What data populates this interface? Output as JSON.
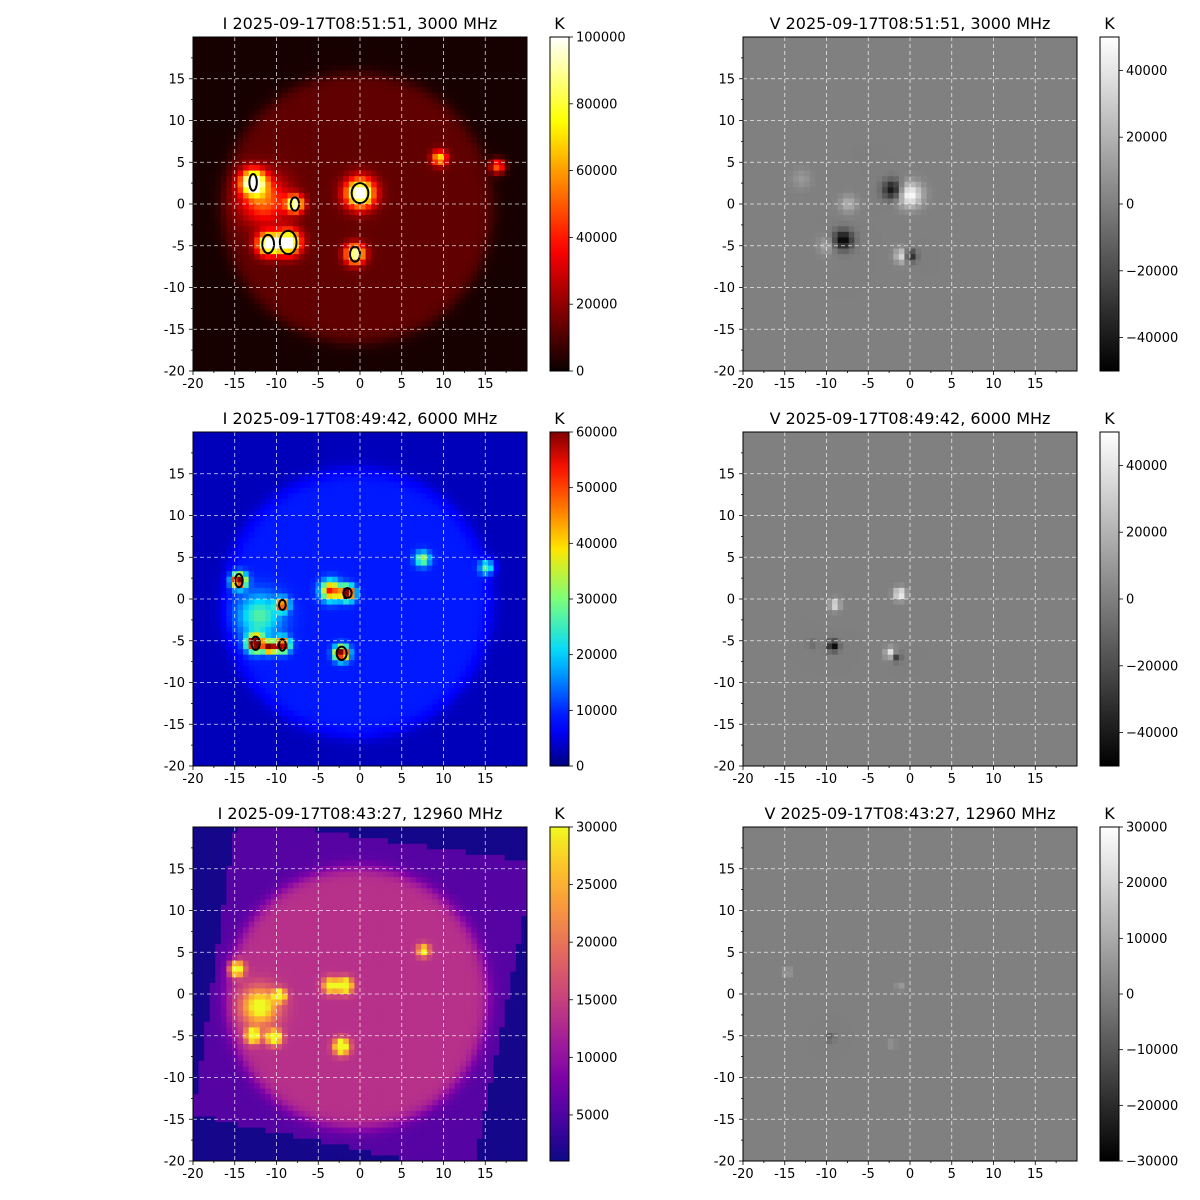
{
  "figure": {
    "background": "#ffffff",
    "grid_color": "#ffffff",
    "contour_color": "#000000"
  },
  "chart_data": [
    {
      "type": "heatmap",
      "stokes": "I",
      "title": "I 2025-09-17T08:51:51, 3000 MHz",
      "colorbar_label": "K",
      "colormap": "hot",
      "colorbar_ticks": [
        "0",
        "20000",
        "40000",
        "60000",
        "80000",
        "100000"
      ],
      "colorbar_tick_values": [
        0,
        20000,
        40000,
        60000,
        80000,
        100000
      ],
      "colorbar_range": [
        0,
        100000
      ],
      "xlim": [
        -20,
        20
      ],
      "ylim": [
        -20,
        20
      ],
      "x_ticks": [
        "-20",
        "-15",
        "-10",
        "-5",
        "0",
        "5",
        "10",
        "15"
      ],
      "x_tick_values": [
        -20,
        -15,
        -10,
        -5,
        0,
        5,
        10,
        15
      ],
      "y_ticks": [
        "-20",
        "-15",
        "-10",
        "-5",
        "0",
        "5",
        "10",
        "15"
      ],
      "y_tick_values": [
        -20,
        -15,
        -10,
        -5,
        0,
        5,
        10,
        15
      ],
      "grid": true,
      "disk": {
        "center": [
          -0.3,
          -0.5
        ],
        "radius": 16.2,
        "level": 13000
      },
      "background_level": 2000,
      "sources": [
        {
          "x": -12.8,
          "y": 2.6,
          "peak": 100000,
          "sigma": 1.0
        },
        {
          "x": -11.0,
          "y": -4.8,
          "peak": 100000,
          "sigma": 0.9
        },
        {
          "x": -8.6,
          "y": -4.6,
          "peak": 100000,
          "sigma": 1.0
        },
        {
          "x": -7.8,
          "y": 0.0,
          "peak": 85000,
          "sigma": 0.7
        },
        {
          "x": 0.0,
          "y": 1.3,
          "peak": 100000,
          "sigma": 1.2
        },
        {
          "x": -0.6,
          "y": -6.0,
          "peak": 90000,
          "sigma": 0.8
        },
        {
          "x": 9.5,
          "y": 5.5,
          "peak": 60000,
          "sigma": 0.6
        },
        {
          "x": 16.5,
          "y": 4.5,
          "peak": 50000,
          "sigma": 0.6
        },
        {
          "x": -11.5,
          "y": 0.5,
          "peak": 40000,
          "sigma": 2.0
        }
      ],
      "contours": [
        {
          "x": -12.8,
          "y": 2.6,
          "rx": 0.45,
          "ry": 1.0
        },
        {
          "x": -11.0,
          "y": -4.8,
          "rx": 0.7,
          "ry": 1.1
        },
        {
          "x": -8.6,
          "y": -4.6,
          "rx": 1.0,
          "ry": 1.4
        },
        {
          "x": -7.8,
          "y": 0.0,
          "rx": 0.5,
          "ry": 0.8
        },
        {
          "x": 0.0,
          "y": 1.3,
          "rx": 1.0,
          "ry": 1.2
        },
        {
          "x": -0.6,
          "y": -6.0,
          "rx": 0.6,
          "ry": 0.9
        }
      ]
    },
    {
      "type": "heatmap",
      "stokes": "V",
      "title": "V 2025-09-17T08:51:51, 3000 MHz",
      "colorbar_label": "K",
      "colormap": "gray",
      "colorbar_ticks": [
        "−40000",
        "−20000",
        "0",
        "20000",
        "40000"
      ],
      "colorbar_tick_values": [
        -40000,
        -20000,
        0,
        20000,
        40000
      ],
      "colorbar_range": [
        -50000,
        50000
      ],
      "xlim": [
        -20,
        20
      ],
      "ylim": [
        -20,
        20
      ],
      "x_ticks": [
        "-20",
        "-15",
        "-10",
        "-5",
        "0",
        "5",
        "10",
        "15"
      ],
      "x_tick_values": [
        -20,
        -15,
        -10,
        -5,
        0,
        5,
        10,
        15
      ],
      "y_ticks": [
        "-20",
        "-15",
        "-10",
        "-5",
        "0",
        "5",
        "10",
        "15"
      ],
      "y_tick_values": [
        -20,
        -15,
        -10,
        -5,
        0,
        5,
        10,
        15
      ],
      "grid": true,
      "sources": [
        {
          "x": -8.0,
          "y": -4.3,
          "peak": -50000,
          "sigma": 0.8
        },
        {
          "x": -7.4,
          "y": 0.0,
          "peak": 20000,
          "sigma": 0.7
        },
        {
          "x": -2.1,
          "y": 1.7,
          "peak": -45000,
          "sigma": 0.8
        },
        {
          "x": 0.0,
          "y": 1.1,
          "peak": 50000,
          "sigma": 1.0
        },
        {
          "x": -0.9,
          "y": -6.2,
          "peak": 40000,
          "sigma": 0.6
        },
        {
          "x": 0.0,
          "y": -6.2,
          "peak": -45000,
          "sigma": 0.5
        },
        {
          "x": -13.0,
          "y": 3.0,
          "peak": 10000,
          "sigma": 0.8
        },
        {
          "x": -10.0,
          "y": -5.0,
          "peak": 15000,
          "sigma": 0.7
        }
      ]
    },
    {
      "type": "heatmap",
      "stokes": "I",
      "title": "I 2025-09-17T08:49:42, 6000 MHz",
      "colorbar_label": "K",
      "colormap": "jet",
      "colorbar_ticks": [
        "0",
        "10000",
        "20000",
        "30000",
        "40000",
        "50000",
        "60000"
      ],
      "colorbar_tick_values": [
        0,
        10000,
        20000,
        30000,
        40000,
        50000,
        60000
      ],
      "colorbar_range": [
        0,
        60000
      ],
      "xlim": [
        -20,
        20
      ],
      "ylim": [
        -20,
        20
      ],
      "x_ticks": [
        "-20",
        "-15",
        "-10",
        "-5",
        "0",
        "5",
        "10",
        "15"
      ],
      "x_tick_values": [
        -20,
        -15,
        -10,
        -5,
        0,
        5,
        10,
        15
      ],
      "y_ticks": [
        "-20",
        "-15",
        "-10",
        "-5",
        "0",
        "5",
        "10",
        "15"
      ],
      "y_tick_values": [
        -20,
        -15,
        -10,
        -5,
        0,
        5,
        10,
        15
      ],
      "grid": true,
      "disk": {
        "center": [
          -0.3,
          -0.5
        ],
        "radius": 16.0,
        "level": 9000
      },
      "background_level": 3000,
      "sources": [
        {
          "x": -14.5,
          "y": 2.2,
          "peak": 60000,
          "sigma": 0.6
        },
        {
          "x": -12.5,
          "y": -5.3,
          "peak": 60000,
          "sigma": 0.7
        },
        {
          "x": -10.8,
          "y": -5.8,
          "peak": 55000,
          "sigma": 0.5
        },
        {
          "x": -9.3,
          "y": -5.5,
          "peak": 55000,
          "sigma": 0.6
        },
        {
          "x": -9.3,
          "y": -0.7,
          "peak": 50000,
          "sigma": 0.5
        },
        {
          "x": -3.5,
          "y": 1.0,
          "peak": 45000,
          "sigma": 0.8
        },
        {
          "x": -1.5,
          "y": 0.7,
          "peak": 60000,
          "sigma": 0.6
        },
        {
          "x": -2.2,
          "y": -6.5,
          "peak": 60000,
          "sigma": 0.6
        },
        {
          "x": 7.5,
          "y": 4.8,
          "peak": 25000,
          "sigma": 0.6
        },
        {
          "x": 15.2,
          "y": 3.8,
          "peak": 22000,
          "sigma": 0.6
        },
        {
          "x": -12.0,
          "y": -2.0,
          "peak": 18000,
          "sigma": 1.8
        }
      ],
      "contours": [
        {
          "x": -14.5,
          "y": 2.2,
          "rx": 0.45,
          "ry": 0.8
        },
        {
          "x": -12.5,
          "y": -5.3,
          "rx": 0.5,
          "ry": 0.8
        },
        {
          "x": -9.3,
          "y": -5.5,
          "rx": 0.4,
          "ry": 0.7
        },
        {
          "x": -9.3,
          "y": -0.7,
          "rx": 0.4,
          "ry": 0.6
        },
        {
          "x": -1.5,
          "y": 0.7,
          "rx": 0.5,
          "ry": 0.6
        },
        {
          "x": -2.2,
          "y": -6.5,
          "rx": 0.6,
          "ry": 0.8
        }
      ]
    },
    {
      "type": "heatmap",
      "stokes": "V",
      "title": "V 2025-09-17T08:49:42, 6000 MHz",
      "colorbar_label": "K",
      "colormap": "gray",
      "colorbar_ticks": [
        "−40000",
        "−20000",
        "0",
        "20000",
        "40000"
      ],
      "colorbar_tick_values": [
        -40000,
        -20000,
        0,
        20000,
        40000
      ],
      "colorbar_range": [
        -50000,
        50000
      ],
      "xlim": [
        -20,
        20
      ],
      "ylim": [
        -20,
        20
      ],
      "x_ticks": [
        "-20",
        "-15",
        "-10",
        "-5",
        "0",
        "5",
        "10",
        "15"
      ],
      "x_tick_values": [
        -20,
        -15,
        -10,
        -5,
        0,
        5,
        10,
        15
      ],
      "y_ticks": [
        "-20",
        "-15",
        "-10",
        "-5",
        "0",
        "5",
        "10",
        "15"
      ],
      "y_tick_values": [
        -20,
        -15,
        -10,
        -5,
        0,
        5,
        10,
        15
      ],
      "grid": true,
      "sources": [
        {
          "x": -9.0,
          "y": -0.7,
          "peak": 40000,
          "sigma": 0.45
        },
        {
          "x": -9.2,
          "y": -5.6,
          "peak": -50000,
          "sigma": 0.45
        },
        {
          "x": -1.2,
          "y": 0.6,
          "peak": 50000,
          "sigma": 0.5
        },
        {
          "x": -2.3,
          "y": -6.5,
          "peak": 45000,
          "sigma": 0.45
        },
        {
          "x": -1.7,
          "y": -6.9,
          "peak": -35000,
          "sigma": 0.4
        },
        {
          "x": -11.7,
          "y": -5.4,
          "peak": -8000,
          "sigma": 0.4
        }
      ]
    },
    {
      "type": "heatmap",
      "stokes": "I",
      "title": "I 2025-09-17T08:43:27, 12960 MHz",
      "colorbar_label": "K",
      "colormap": "plasma",
      "colorbar_ticks": [
        "5000",
        "10000",
        "15000",
        "20000",
        "25000",
        "30000"
      ],
      "colorbar_tick_values": [
        5000,
        10000,
        15000,
        20000,
        25000,
        30000
      ],
      "colorbar_range": [
        1000,
        30000
      ],
      "xlim": [
        -20,
        20
      ],
      "ylim": [
        -20,
        20
      ],
      "x_ticks": [
        "-20",
        "-15",
        "-10",
        "-5",
        "0",
        "5",
        "10",
        "15"
      ],
      "x_tick_values": [
        -20,
        -15,
        -10,
        -5,
        0,
        5,
        10,
        15
      ],
      "y_ticks": [
        "-20",
        "-15",
        "-10",
        "-5",
        "0",
        "5",
        "10",
        "15"
      ],
      "y_tick_values": [
        -20,
        -15,
        -10,
        -5,
        0,
        5,
        10,
        15
      ],
      "grid": true,
      "disk": {
        "center": [
          -0.3,
          -0.5
        ],
        "radius": 15.7,
        "level": 13500
      },
      "background_level": 1500,
      "rotated_field": {
        "level": 5500,
        "corners": [
          [
            -14.8,
            21
          ],
          [
            21,
            15.8
          ],
          [
            13.5,
            -21.5
          ],
          [
            -20,
            -14.5
          ]
        ]
      },
      "sources": [
        {
          "x": -14.8,
          "y": 3.0,
          "peak": 27000,
          "sigma": 0.6
        },
        {
          "x": -12.8,
          "y": -5.0,
          "peak": 27000,
          "sigma": 0.6
        },
        {
          "x": -10.3,
          "y": -5.2,
          "peak": 28000,
          "sigma": 0.6
        },
        {
          "x": -9.6,
          "y": -0.2,
          "peak": 24000,
          "sigma": 0.5
        },
        {
          "x": -3.5,
          "y": 1.0,
          "peak": 24000,
          "sigma": 0.6
        },
        {
          "x": -1.8,
          "y": 1.0,
          "peak": 28000,
          "sigma": 0.6
        },
        {
          "x": -2.2,
          "y": -6.3,
          "peak": 30000,
          "sigma": 0.6
        },
        {
          "x": 7.6,
          "y": 5.2,
          "peak": 19000,
          "sigma": 0.5
        },
        {
          "x": -12.0,
          "y": -1.5,
          "peak": 19000,
          "sigma": 1.5
        }
      ]
    },
    {
      "type": "heatmap",
      "stokes": "V",
      "title": "V 2025-09-17T08:43:27, 12960 MHz",
      "colorbar_label": "K",
      "colormap": "gray",
      "colorbar_ticks": [
        "−30000",
        "−20000",
        "−10000",
        "0",
        "10000",
        "20000",
        "30000"
      ],
      "colorbar_tick_values": [
        -30000,
        -20000,
        -10000,
        0,
        10000,
        20000,
        30000
      ],
      "colorbar_range": [
        -30000,
        30000
      ],
      "xlim": [
        -20,
        20
      ],
      "ylim": [
        -20,
        20
      ],
      "x_ticks": [
        "-20",
        "-15",
        "-10",
        "-5",
        "0",
        "5",
        "10",
        "15"
      ],
      "x_tick_values": [
        -20,
        -15,
        -10,
        -5,
        0,
        5,
        10,
        15
      ],
      "y_ticks": [
        "-20",
        "-15",
        "-10",
        "-5",
        "0",
        "5",
        "10",
        "15"
      ],
      "y_tick_values": [
        -20,
        -15,
        -10,
        -5,
        0,
        5,
        10,
        15
      ],
      "grid": true,
      "sources": [
        {
          "x": -14.7,
          "y": 2.6,
          "peak": 8000,
          "sigma": 0.4
        },
        {
          "x": -1.2,
          "y": 0.9,
          "peak": 7000,
          "sigma": 0.35
        },
        {
          "x": -9.5,
          "y": -5.2,
          "peak": -9000,
          "sigma": 0.35
        },
        {
          "x": -2.2,
          "y": -6.0,
          "peak": 6000,
          "sigma": 0.35
        }
      ]
    }
  ]
}
